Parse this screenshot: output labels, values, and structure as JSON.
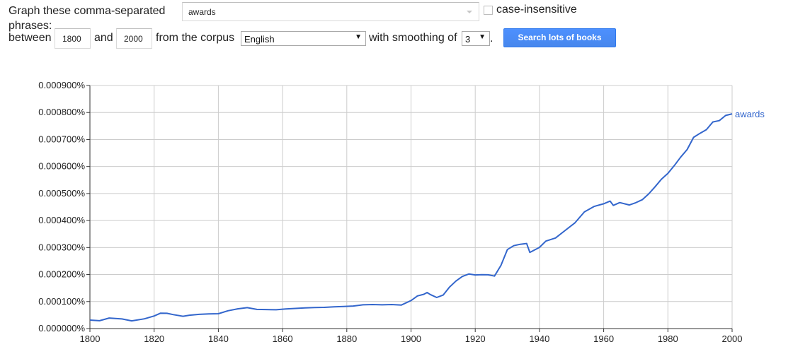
{
  "form": {
    "graph_label": "Graph these comma-separated",
    "phrases_label": "phrases:",
    "phrase_value": "awards",
    "case_label": "case-insensitive",
    "between_label": "between",
    "start_year": "1800",
    "and_label": "and",
    "end_year": "2000",
    "corpus_label": "from the corpus",
    "corpus_value": "English",
    "smoothing_label": "with smoothing of",
    "smoothing_value": "3",
    "period": ".",
    "search_button": "Search lots of books"
  },
  "chart_data": {
    "type": "line",
    "x_range": [
      1800,
      2000
    ],
    "y_range": [
      0,
      0.0009
    ],
    "y_ticks": [
      "0.000000%",
      "0.000100%",
      "0.000200%",
      "0.000300%",
      "0.000400%",
      "0.000500%",
      "0.000600%",
      "0.000700%",
      "0.000800%",
      "0.000900%"
    ],
    "x_ticks": [
      "1800",
      "1820",
      "1840",
      "1860",
      "1880",
      "1900",
      "1920",
      "1940",
      "1960",
      "1980",
      "2000"
    ],
    "grid": true,
    "series": [
      {
        "name": "awards",
        "color": "#3366cc",
        "x": [
          1800,
          1803,
          1806,
          1810,
          1813,
          1817,
          1820,
          1822,
          1824,
          1826,
          1829,
          1831,
          1834,
          1837,
          1840,
          1843,
          1846,
          1849,
          1852,
          1855,
          1858,
          1861,
          1864,
          1867,
          1870,
          1873,
          1876,
          1879,
          1882,
          1885,
          1888,
          1891,
          1894,
          1897,
          1900,
          1902,
          1904,
          1905,
          1906,
          1908,
          1910,
          1912,
          1914,
          1916,
          1918,
          1920,
          1922,
          1924,
          1926,
          1928,
          1930,
          1932,
          1934,
          1936,
          1937,
          1940,
          1942,
          1945,
          1948,
          1951,
          1954,
          1957,
          1960,
          1962,
          1963,
          1965,
          1968,
          1970,
          1972,
          1974,
          1976,
          1978,
          1980,
          1982,
          1984,
          1986,
          1988,
          1990,
          1992,
          1994,
          1996,
          1998,
          2000
        ],
        "y": [
          3.15e-05,
          2.9e-05,
          3.9e-05,
          3.55e-05,
          2.85e-05,
          3.6e-05,
          4.65e-05,
          5.7e-05,
          5.65e-05,
          5.15e-05,
          4.55e-05,
          4.95e-05,
          5.25e-05,
          5.45e-05,
          5.5e-05,
          6.6e-05,
          7.3e-05,
          7.75e-05,
          7.1e-05,
          7.05e-05,
          6.95e-05,
          7.25e-05,
          7.45e-05,
          7.65e-05,
          7.8e-05,
          7.85e-05,
          8.05e-05,
          8.15e-05,
          8.35e-05,
          8.8e-05,
          8.9e-05,
          8.8e-05,
          8.9e-05,
          8.7e-05,
          0.0001035,
          0.000121,
          0.000127,
          0.0001335,
          0.000126,
          0.000115,
          0.000124,
          0.0001535,
          0.000176,
          0.000193,
          0.000202,
          0.0001985,
          0.0001995,
          0.000199,
          0.0001945,
          0.000234,
          0.0002925,
          0.000307,
          0.000312,
          0.000315,
          0.000282,
          0.0003005,
          0.000324,
          0.0003355,
          0.0003635,
          0.000391,
          0.000432,
          0.000452,
          0.000462,
          0.000472,
          0.000456,
          0.0004665,
          0.0004575,
          0.000466,
          0.000477,
          0.0004985,
          0.000525,
          0.000553,
          0.0005745,
          0.0006035,
          0.000635,
          0.000663,
          0.000708,
          0.000723,
          0.0007365,
          0.000765,
          0.00077,
          0.000789,
          0.000795
        ]
      }
    ]
  }
}
